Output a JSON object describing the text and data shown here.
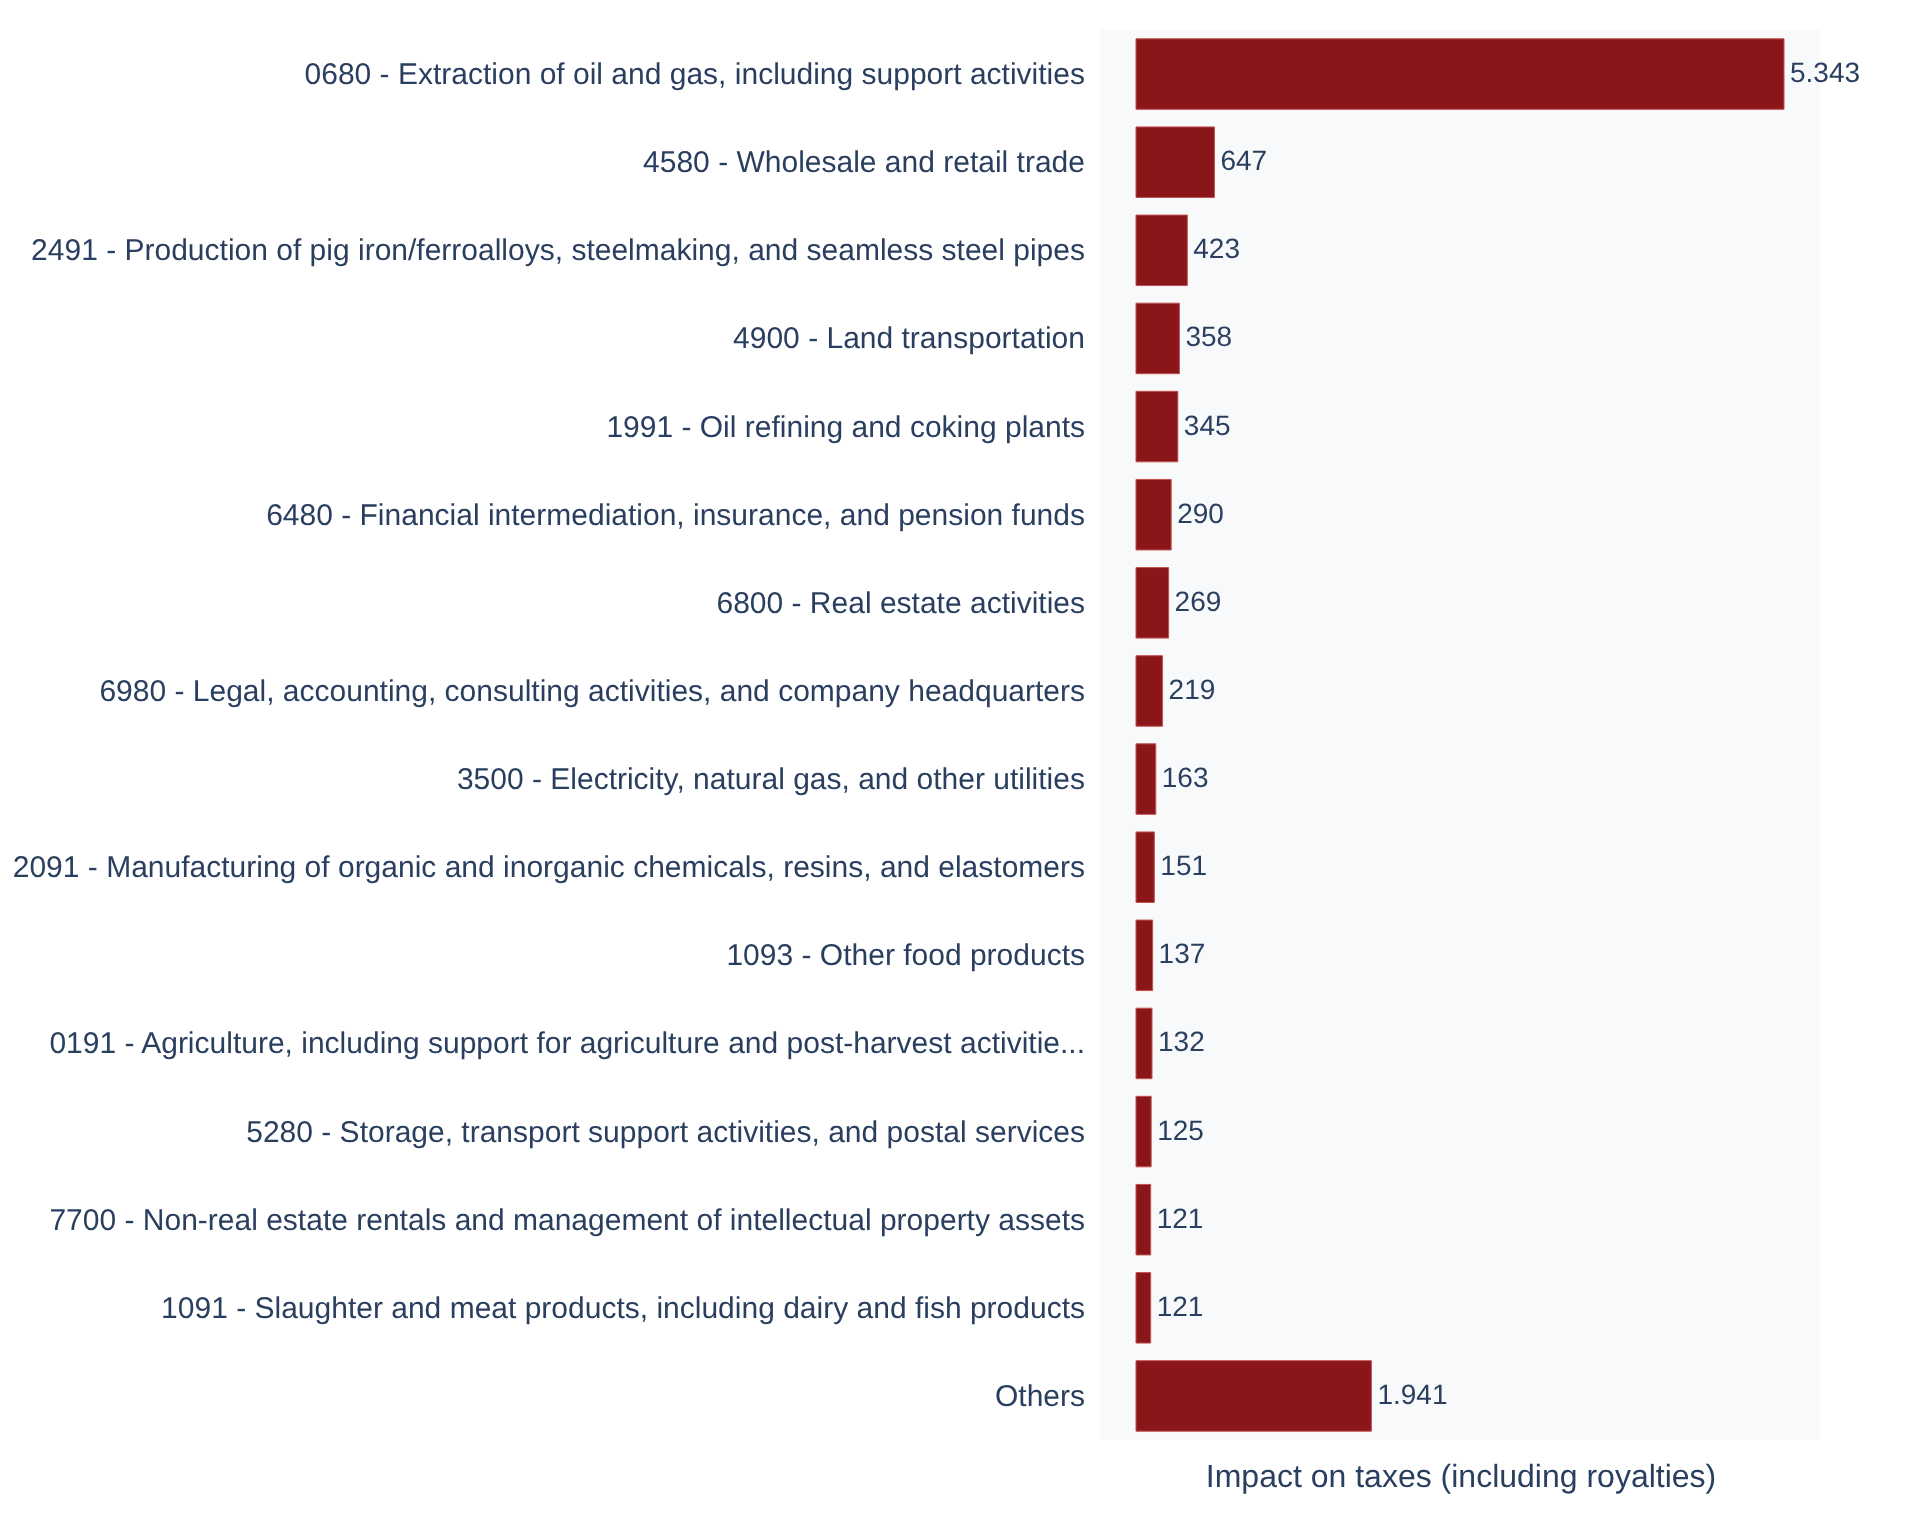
{
  "chart_data": {
    "type": "bar",
    "orientation": "horizontal",
    "xlabel": "Impact on taxes (including royalties)",
    "categories": [
      "0680 - Extraction of oil and gas, including support activities",
      "4580 - Wholesale and retail trade",
      "2491 - Production of pig iron/ferroalloys, steelmaking, and seamless steel pipes",
      "4900 - Land transportation",
      "1991 - Oil refining and coking plants",
      "6480 - Financial intermediation, insurance, and pension funds",
      "6800 - Real estate activities",
      "6980 - Legal, accounting, consulting activities, and company headquarters",
      "3500 - Electricity, natural gas, and other utilities",
      "2091 - Manufacturing of organic and inorganic chemicals, resins, and elastomers",
      "1093 - Other food products",
      "0191 - Agriculture, including support for agriculture and post-harvest activitie...",
      "5280 - Storage, transport support activities, and postal services",
      "7700 - Non-real estate rentals and management of intellectual property assets",
      "1091 - Slaughter and meat products, including dairy and fish products",
      "Others"
    ],
    "values": [
      5343,
      647,
      423,
      358,
      345,
      290,
      269,
      219,
      163,
      151,
      137,
      132,
      125,
      121,
      121,
      1941
    ],
    "value_labels": [
      "5.343",
      "647",
      "423",
      "358",
      "345",
      "290",
      "269",
      "219",
      "163",
      "151",
      "137",
      "132",
      "125",
      "121",
      "121",
      "1.941"
    ],
    "color": "#8b161a",
    "tick_labels": "y",
    "grid": false
  }
}
